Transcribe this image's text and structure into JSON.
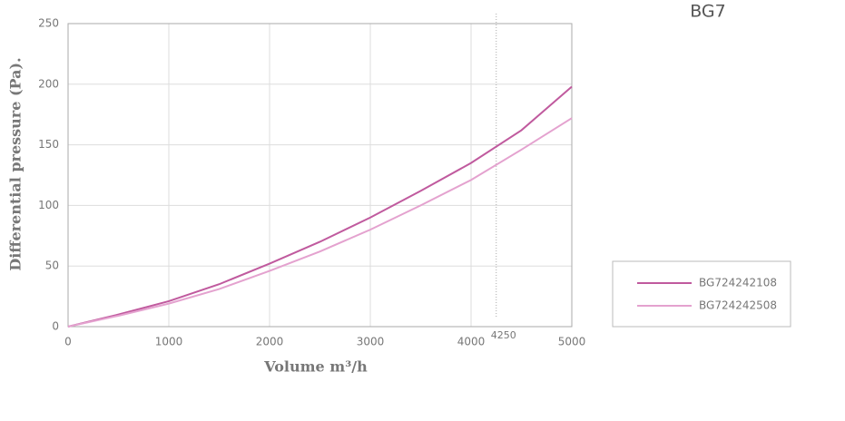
{
  "chart_data": {
    "type": "line",
    "title": "BG7",
    "x_label": "Volume m³/h",
    "y_label": "Differential pressure (Pa).",
    "x": [
      0,
      500,
      1000,
      1500,
      2000,
      2500,
      3000,
      3500,
      4000,
      4500,
      5000
    ],
    "series": [
      {
        "name": "BG724242108",
        "color": "#c05a9e",
        "values": [
          0,
          10,
          21,
          35,
          52,
          70,
          90,
          112,
          135,
          162,
          198
        ]
      },
      {
        "name": "BG724242508",
        "color": "#e4a2cf",
        "values": [
          0,
          9,
          19,
          31,
          46,
          62,
          80,
          100,
          121,
          146,
          172
        ]
      }
    ],
    "reference_x": 4250,
    "xlim": [
      0,
      5000
    ],
    "xticks": [
      0,
      1000,
      2000,
      3000,
      4000,
      5000
    ],
    "ylim": [
      0,
      250
    ],
    "yticks": [
      0,
      50,
      100,
      150,
      200,
      250
    ],
    "grid": true,
    "legend": "right"
  }
}
